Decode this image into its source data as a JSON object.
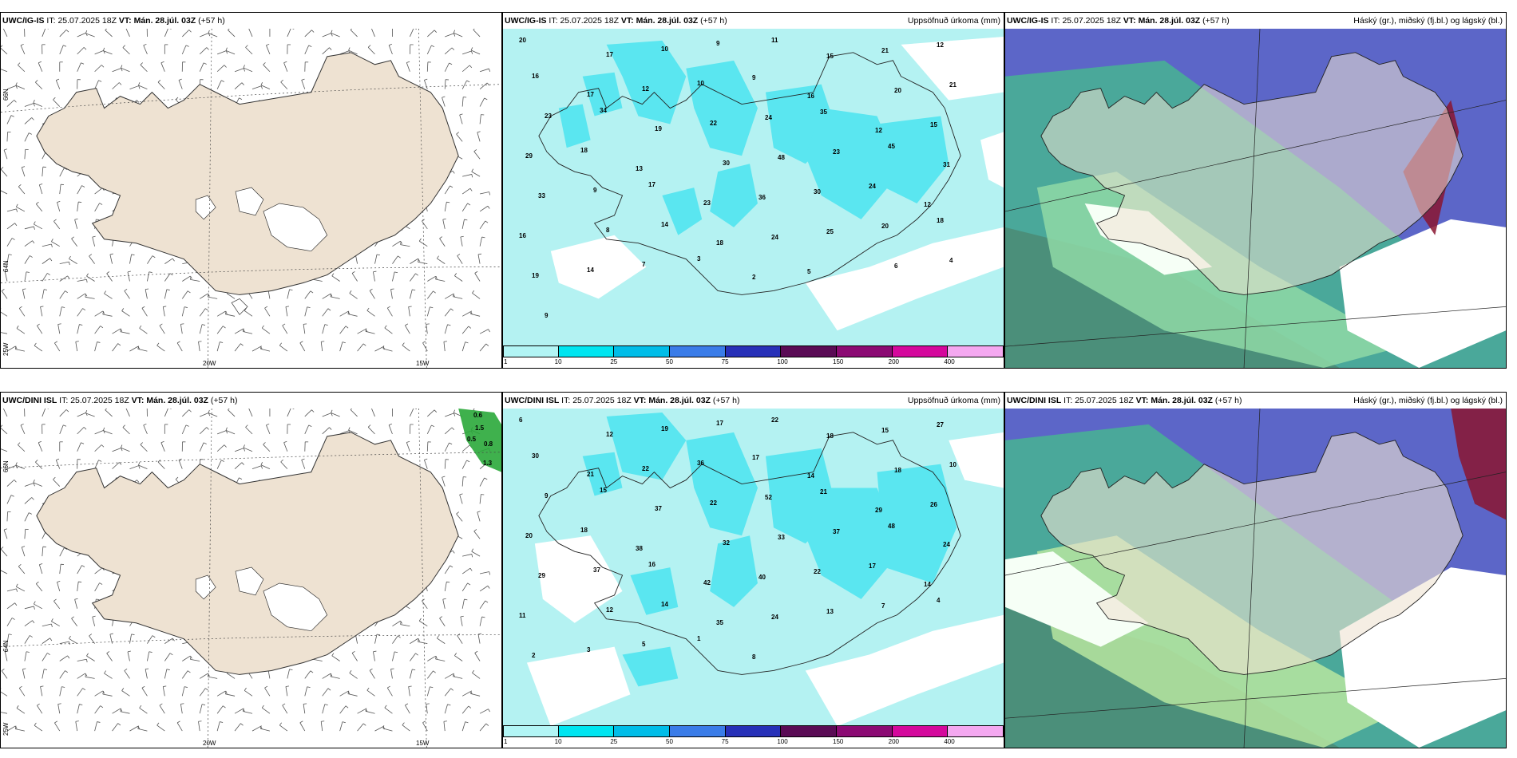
{
  "panels": {
    "top_left": {
      "model": "UWC/IG-IS",
      "it_label": "IT:",
      "it": "25.07.2025 18Z",
      "vt_label": "VT: Mán. 28.júl. 03Z",
      "lead": "(+57 h)",
      "right_title": ""
    },
    "top_mid": {
      "model": "UWC/IG-IS",
      "it_label": "IT:",
      "it": "25.07.2025 18Z",
      "vt_label": "VT: Mán. 28.júl. 03Z",
      "lead": "(+57 h)",
      "right_title": "Uppsöfnuð úrkoma (mm)"
    },
    "top_right": {
      "model": "UWC/IG-IS",
      "it_label": "IT:",
      "it": "25.07.2025 18Z",
      "vt_label": "VT: Mán. 28.júl. 03Z",
      "lead": "(+57 h)",
      "right_title": "Háský (gr.), miðský (fj.bl.) og lágský (bl.)"
    },
    "bot_left": {
      "model": "UWC/DINI ISL",
      "it_label": "IT:",
      "it": "25.07.2025 18Z",
      "vt_label": "VT: Mán. 28.júl. 03Z",
      "lead": "(+57 h)",
      "right_title": ""
    },
    "bot_mid": {
      "model": "UWC/DINI ISL",
      "it_label": "IT:",
      "it": "25.07.2025 18Z",
      "vt_label": "VT: Mán. 28.júl. 03Z",
      "lead": "(+57 h)",
      "right_title": "Uppsöfnuð úrkoma (mm)"
    },
    "bot_right": {
      "model": "UWC/DINI ISL",
      "it_label": "IT:",
      "it": "25.07.2025 18Z",
      "vt_label": "VT: Mán. 28.júl. 03Z",
      "lead": "(+57 h)",
      "right_title": "Háský (gr.), miðský (fj.bl.) og lágský (bl.)"
    }
  },
  "axis_ticks": {
    "lon_20": "20W",
    "lon_15": "15W",
    "lon_25": "25W",
    "lat_66": "66N",
    "lat_64": "64N"
  },
  "colorbar": {
    "labels": [
      "1",
      "10",
      "25",
      "50",
      "75",
      "100",
      "150",
      "200",
      "400"
    ],
    "colors": [
      "#b2f5f5",
      "#00e5f0",
      "#00bde8",
      "#3a7ce8",
      "#2730b8",
      "#5a0b55",
      "#8b0a73",
      "#d4089c",
      "#f4a8f0"
    ]
  },
  "colors": {
    "land": "#eee2d2",
    "precip_bg": "#b4f2f2",
    "precip_mid": "#5ae6f0",
    "cloud_low": "#5c66c8",
    "cloud_mid": "#4aa89a",
    "cloud_high": "#8a1530"
  },
  "precip_labels_top": [
    "20",
    "17",
    "10",
    "9",
    "11",
    "15",
    "21",
    "12",
    "16",
    "17",
    "12",
    "10",
    "9",
    "16",
    "20",
    "21",
    "23",
    "34",
    "19",
    "22",
    "24",
    "35",
    "12",
    "15",
    "29",
    "18",
    "13",
    "30",
    "48",
    "23",
    "45",
    "31",
    "33",
    "9",
    "17",
    "23",
    "36",
    "30",
    "24",
    "12",
    "16",
    "8",
    "14",
    "18",
    "24",
    "25",
    "20",
    "18",
    "19",
    "14",
    "7",
    "3",
    "2",
    "5",
    "6",
    "4",
    "9"
  ],
  "precip_labels_bot": [
    "6",
    "12",
    "19",
    "17",
    "22",
    "18",
    "15",
    "27",
    "30",
    "21",
    "22",
    "36",
    "17",
    "14",
    "18",
    "10",
    "9",
    "15",
    "37",
    "22",
    "52",
    "21",
    "29",
    "26",
    "20",
    "18",
    "38",
    "32",
    "33",
    "37",
    "48",
    "24",
    "29",
    "37",
    "16",
    "42",
    "40",
    "22",
    "17",
    "14",
    "11",
    "12",
    "14",
    "35",
    "24",
    "13",
    "7",
    "4",
    "2",
    "3",
    "5",
    "1",
    "8"
  ],
  "green_labels": [
    "0.6",
    "1.5",
    "0.5",
    "0.8",
    "1.3"
  ]
}
